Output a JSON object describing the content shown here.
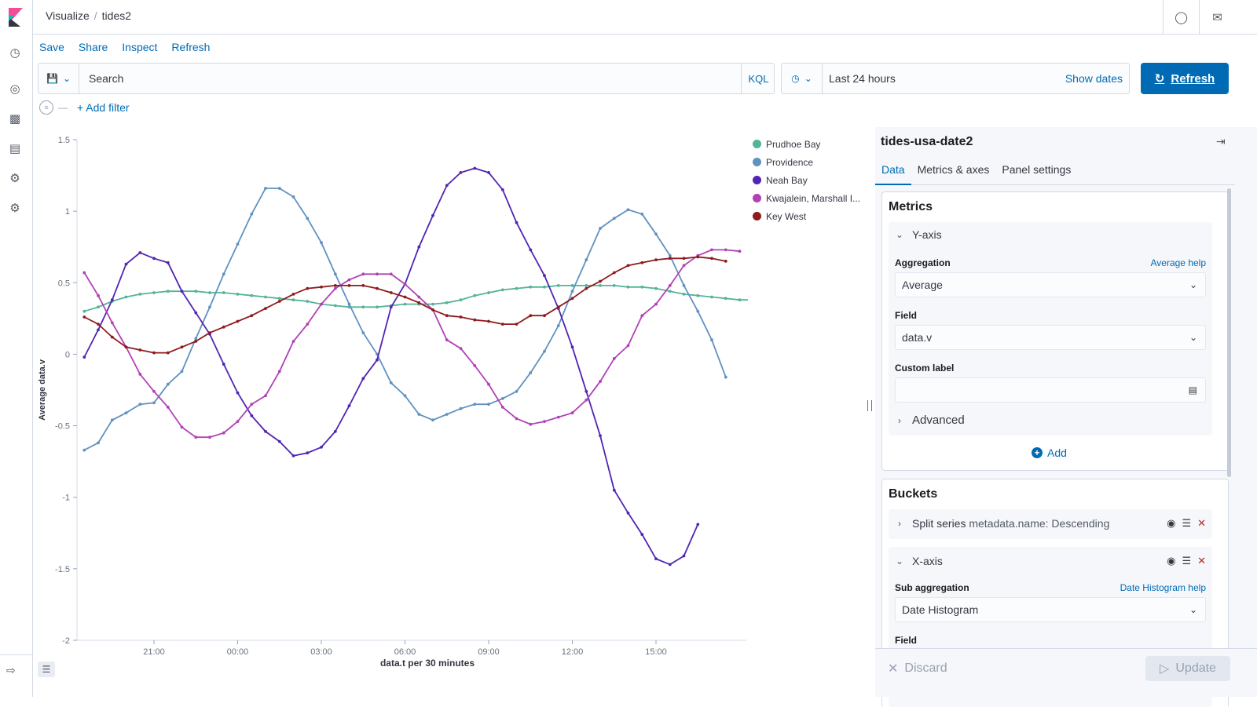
{
  "breadcrumb": {
    "root": "Visualize",
    "current": "tides2"
  },
  "top_menu": [
    "Save",
    "Share",
    "Inspect",
    "Refresh"
  ],
  "query": {
    "placeholder": "Search",
    "language": "KQL"
  },
  "date_picker": {
    "range": "Last 24 hours",
    "show_dates": "Show dates"
  },
  "refresh_button": "Refresh",
  "filter": {
    "add_filter": "+ Add filter"
  },
  "colors": {
    "accent": "#006bb4",
    "prudhoe": "#54b399",
    "providence": "#6092c0",
    "neah": "#5224b4",
    "kwajalein": "#b042b5",
    "keywest": "#8e1b1e"
  },
  "chart_data": {
    "type": "line",
    "ylabel": "Average data.v",
    "xlabel": "data.t per 30 minutes",
    "ylim": [
      -2,
      1.5
    ],
    "yticks": [
      "1.5",
      "1",
      "0.5",
      "0",
      "-0.5",
      "-1",
      "-1.5",
      "-2"
    ],
    "xticks": [
      "21:00",
      "00:00",
      "03:00",
      "06:00",
      "09:00",
      "12:00",
      "15:00"
    ],
    "x_start": "18:30",
    "x_step_hours": 0.5,
    "grid": false,
    "legend_position": "top-right",
    "series": [
      {
        "name": "Prudhoe Bay",
        "values": [
          0.3,
          0.33,
          0.37,
          0.4,
          0.42,
          0.43,
          0.44,
          0.44,
          0.44,
          0.43,
          0.43,
          0.42,
          0.41,
          0.4,
          0.39,
          0.38,
          0.37,
          0.35,
          0.34,
          0.33,
          0.33,
          0.33,
          0.34,
          0.35,
          0.35,
          0.35,
          0.36,
          0.38,
          0.41,
          0.43,
          0.45,
          0.46,
          0.47,
          0.47,
          0.48,
          0.48,
          0.48,
          0.48,
          0.48,
          0.47,
          0.47,
          0.46,
          0.44,
          0.42,
          0.41,
          0.4,
          0.39,
          0.38,
          0.38,
          0.38,
          0.38,
          0.39,
          0.39,
          0.4,
          0.41
        ]
      },
      {
        "name": "Providence",
        "values": [
          -0.67,
          -0.62,
          -0.46,
          -0.41,
          -0.35,
          -0.34,
          -0.21,
          -0.12,
          0.11,
          0.33,
          0.56,
          0.77,
          0.98,
          1.16,
          1.16,
          1.1,
          0.95,
          0.78,
          0.56,
          0.35,
          0.15,
          0.0,
          -0.2,
          -0.29,
          -0.42,
          -0.46,
          -0.42,
          -0.38,
          -0.35,
          -0.35,
          -0.31,
          -0.26,
          -0.13,
          0.02,
          0.2,
          0.44,
          0.66,
          0.88,
          0.95,
          1.01,
          0.98,
          0.84,
          0.69,
          0.48,
          0.3,
          0.1,
          -0.16
        ]
      },
      {
        "name": "Neah Bay",
        "values": [
          -0.02,
          0.17,
          0.38,
          0.63,
          0.71,
          0.67,
          0.64,
          0.44,
          0.29,
          0.14,
          -0.07,
          -0.27,
          -0.43,
          -0.54,
          -0.61,
          -0.71,
          -0.69,
          -0.65,
          -0.54,
          -0.36,
          -0.17,
          -0.04,
          0.33,
          0.49,
          0.75,
          0.97,
          1.18,
          1.27,
          1.3,
          1.27,
          1.15,
          0.92,
          0.73,
          0.55,
          0.32,
          0.05,
          -0.26,
          -0.57,
          -0.95,
          -1.11,
          -1.26,
          -1.43,
          -1.47,
          -1.41,
          -1.19
        ]
      },
      {
        "name": "Kwajalein, Marshall I...",
        "values": [
          0.57,
          0.41,
          0.22,
          0.05,
          -0.14,
          -0.26,
          -0.37,
          -0.51,
          -0.58,
          -0.58,
          -0.55,
          -0.47,
          -0.35,
          -0.29,
          -0.12,
          0.09,
          0.21,
          0.35,
          0.46,
          0.52,
          0.56,
          0.56,
          0.56,
          0.49,
          0.4,
          0.31,
          0.1,
          0.04,
          -0.08,
          -0.21,
          -0.37,
          -0.45,
          -0.49,
          -0.47,
          -0.44,
          -0.41,
          -0.32,
          -0.19,
          -0.03,
          0.06,
          0.27,
          0.35,
          0.48,
          0.62,
          0.69,
          0.73,
          0.73,
          0.72
        ]
      },
      {
        "name": "Key West",
        "values": [
          0.26,
          0.21,
          0.12,
          0.05,
          0.03,
          0.01,
          0.01,
          0.05,
          0.09,
          0.15,
          0.19,
          0.23,
          0.27,
          0.32,
          0.37,
          0.42,
          0.46,
          0.47,
          0.48,
          0.48,
          0.48,
          0.46,
          0.43,
          0.4,
          0.36,
          0.31,
          0.27,
          0.26,
          0.24,
          0.23,
          0.21,
          0.21,
          0.27,
          0.27,
          0.33,
          0.39,
          0.46,
          0.51,
          0.57,
          0.62,
          0.64,
          0.66,
          0.67,
          0.67,
          0.68,
          0.67,
          0.65
        ]
      }
    ]
  },
  "sidebar": {
    "index_pattern": "tides-usa-date2",
    "tabs": [
      "Data",
      "Metrics & axes",
      "Panel settings"
    ],
    "metrics": {
      "title": "Metrics",
      "y_axis_label": "Y-axis",
      "aggregation_label": "Aggregation",
      "aggregation_help": "Average help",
      "aggregation_value": "Average",
      "field_label": "Field",
      "field_value": "data.v",
      "custom_label": "Custom label",
      "custom_label_value": "",
      "advanced": "Advanced",
      "add": "Add"
    },
    "buckets": {
      "title": "Buckets",
      "split_series_prefix": "Split series",
      "split_series_detail": "metadata.name: Descending",
      "x_axis_label": "X-axis",
      "sub_aggregation_label": "Sub aggregation",
      "sub_aggregation_help": "Date Histogram help",
      "sub_aggregation_value": "Date Histogram",
      "field_label": "Field"
    },
    "footer": {
      "discard": "Discard",
      "update": "Update"
    }
  }
}
